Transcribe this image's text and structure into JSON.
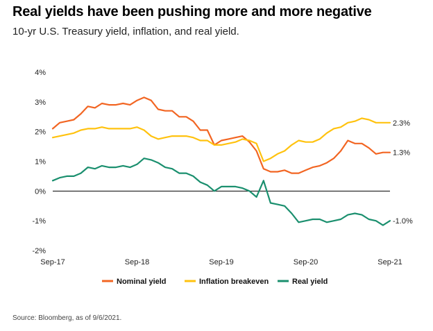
{
  "header": {
    "title": "Real yields have been pushing more and more negative",
    "subtitle": "10-yr U.S. Treasury yield, inflation, and real yield."
  },
  "footer": {
    "source": "Source: Bloomberg, as of 9/6/2021."
  },
  "chart_data": {
    "type": "line",
    "title": "Real yields have been pushing more and more negative",
    "subtitle": "10-yr U.S. Treasury yield, inflation, and real yield.",
    "xlabel": "",
    "ylabel": "",
    "x_ticks": [
      "Sep-17",
      "Sep-18",
      "Sep-19",
      "Sep-20",
      "Sep-21"
    ],
    "y_ticks": [
      "4%",
      "3%",
      "2%",
      "1%",
      "0%",
      "-1%",
      "-2%"
    ],
    "ylim": [
      -2,
      4
    ],
    "xlim": [
      "2017-09",
      "2021-09"
    ],
    "grid": false,
    "zero_line": true,
    "legend_position": "bottom",
    "x": [
      "2017-09",
      "2017-10",
      "2017-11",
      "2017-12",
      "2018-01",
      "2018-02",
      "2018-03",
      "2018-04",
      "2018-05",
      "2018-06",
      "2018-07",
      "2018-08",
      "2018-09",
      "2018-10",
      "2018-11",
      "2018-12",
      "2019-01",
      "2019-02",
      "2019-03",
      "2019-04",
      "2019-05",
      "2019-06",
      "2019-07",
      "2019-08",
      "2019-09",
      "2019-10",
      "2019-11",
      "2019-12",
      "2020-01",
      "2020-02",
      "2020-03",
      "2020-04",
      "2020-05",
      "2020-06",
      "2020-07",
      "2020-08",
      "2020-09",
      "2020-10",
      "2020-11",
      "2020-12",
      "2021-01",
      "2021-02",
      "2021-03",
      "2021-04",
      "2021-05",
      "2021-06",
      "2021-07",
      "2021-08",
      "2021-09"
    ],
    "series": [
      {
        "name": "Nominal yield",
        "color": "#f26522",
        "end_label": "1.3%",
        "values": [
          2.1,
          2.3,
          2.35,
          2.4,
          2.6,
          2.85,
          2.8,
          2.95,
          2.9,
          2.9,
          2.95,
          2.9,
          3.05,
          3.15,
          3.05,
          2.75,
          2.7,
          2.7,
          2.5,
          2.5,
          2.35,
          2.05,
          2.05,
          1.55,
          1.7,
          1.75,
          1.8,
          1.85,
          1.65,
          1.35,
          0.75,
          0.65,
          0.65,
          0.7,
          0.6,
          0.6,
          0.7,
          0.8,
          0.85,
          0.95,
          1.1,
          1.35,
          1.7,
          1.6,
          1.6,
          1.45,
          1.25,
          1.3,
          1.3
        ]
      },
      {
        "name": "Inflation breakeven",
        "color": "#ffc20e",
        "end_label": "2.3%",
        "values": [
          1.8,
          1.85,
          1.9,
          1.95,
          2.05,
          2.1,
          2.1,
          2.15,
          2.1,
          2.1,
          2.1,
          2.1,
          2.15,
          2.05,
          1.85,
          1.75,
          1.8,
          1.85,
          1.85,
          1.85,
          1.8,
          1.7,
          1.7,
          1.55,
          1.55,
          1.6,
          1.65,
          1.75,
          1.7,
          1.6,
          1.0,
          1.1,
          1.25,
          1.35,
          1.55,
          1.7,
          1.65,
          1.65,
          1.75,
          1.95,
          2.1,
          2.15,
          2.3,
          2.35,
          2.45,
          2.4,
          2.3,
          2.3,
          2.3
        ]
      },
      {
        "name": "Real yield",
        "color": "#1a8f6e",
        "end_label": "-1.0%",
        "values": [
          0.35,
          0.45,
          0.5,
          0.5,
          0.6,
          0.8,
          0.75,
          0.85,
          0.8,
          0.8,
          0.85,
          0.8,
          0.9,
          1.1,
          1.05,
          0.95,
          0.8,
          0.75,
          0.6,
          0.6,
          0.5,
          0.3,
          0.2,
          0.0,
          0.15,
          0.15,
          0.15,
          0.1,
          0.0,
          -0.2,
          0.35,
          -0.4,
          -0.45,
          -0.5,
          -0.75,
          -1.05,
          -1.0,
          -0.95,
          -0.95,
          -1.05,
          -1.0,
          -0.95,
          -0.8,
          -0.75,
          -0.8,
          -0.95,
          -1.0,
          -1.15,
          -1.0
        ]
      }
    ]
  }
}
